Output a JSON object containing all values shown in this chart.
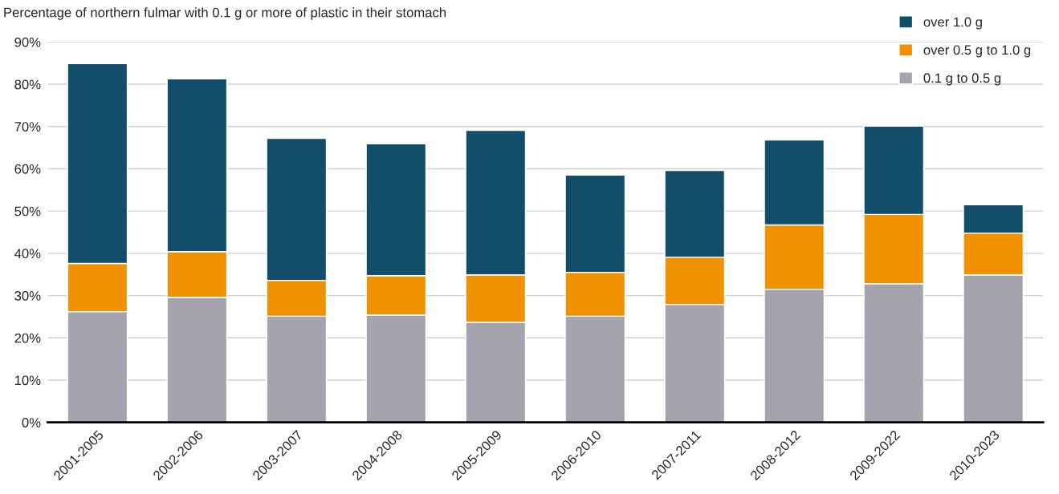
{
  "chart_data": {
    "type": "bar",
    "title": "Percentage of northern fulmar with 0.1 g or more of plastic in their stomach",
    "categories": [
      "2001-2005",
      "2002-2006",
      "2003-2007",
      "2004-2008",
      "2005-2009",
      "2006-2010",
      "2007-2011",
      "2008-2012",
      "2009-2022",
      "2010-2023"
    ],
    "stacked": true,
    "series": [
      {
        "name": "0.1 g to 0.5 g",
        "color": "#a5a3ae",
        "values": [
          26.2,
          29.6,
          25.1,
          25.4,
          23.7,
          25.1,
          27.9,
          31.5,
          32.8,
          34.9
        ]
      },
      {
        "name": "over 0.5 g to 1.0 g",
        "color": "#f09200",
        "values": [
          11.4,
          10.8,
          8.5,
          9.3,
          11.2,
          10.4,
          11.2,
          15.2,
          16.4,
          9.9
        ]
      },
      {
        "name": "over 1.0 g",
        "color": "#124e6a",
        "values": [
          47.3,
          40.9,
          33.6,
          31.2,
          34.2,
          23.0,
          20.5,
          20.1,
          20.9,
          6.7
        ]
      }
    ],
    "ylim": [
      0,
      90
    ],
    "yticks": [
      {
        "value": 0,
        "label": "0%"
      },
      {
        "value": 10,
        "label": "10%"
      },
      {
        "value": 20,
        "label": "20%"
      },
      {
        "value": 30,
        "label": "30%"
      },
      {
        "value": 40,
        "label": "40%"
      },
      {
        "value": 50,
        "label": "50%"
      },
      {
        "value": 60,
        "label": "60%"
      },
      {
        "value": 70,
        "label": "70%"
      },
      {
        "value": 80,
        "label": "80%"
      },
      {
        "value": 90,
        "label": "90%"
      }
    ],
    "grid": "y",
    "legend": "top right"
  }
}
